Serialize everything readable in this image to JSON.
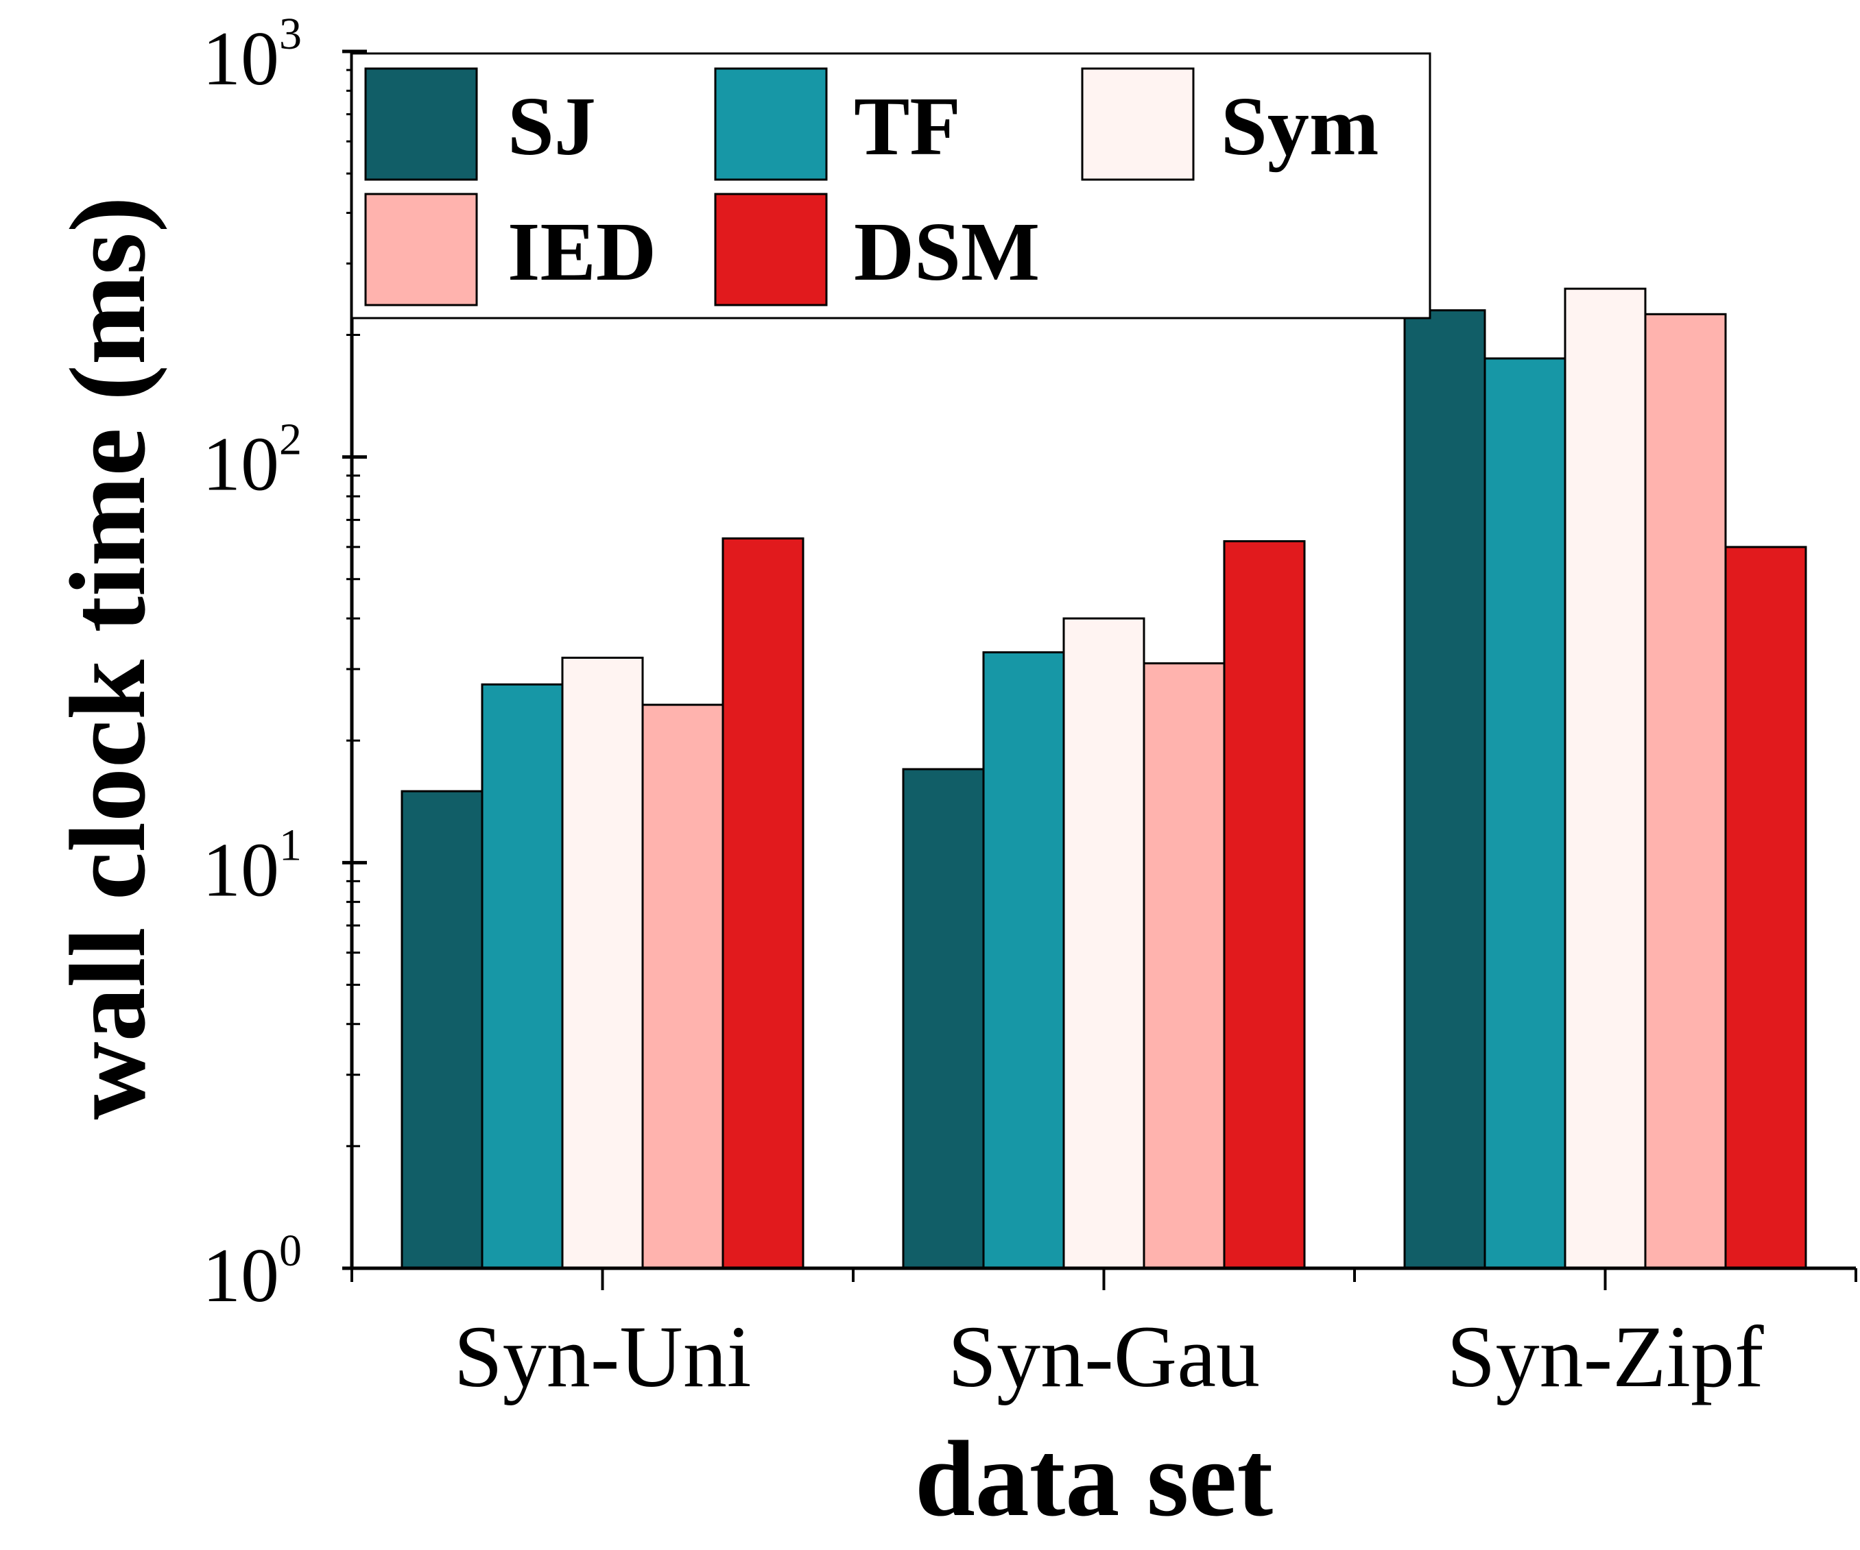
{
  "chart_data": {
    "type": "bar",
    "title": "",
    "xlabel": "data set",
    "ylabel": "wall clock time (ms)",
    "yscale": "log",
    "ylim": [
      1,
      1000
    ],
    "y_ticks": [
      {
        "base": "10",
        "exp": "0"
      },
      {
        "base": "10",
        "exp": "1"
      },
      {
        "base": "10",
        "exp": "2"
      },
      {
        "base": "10",
        "exp": "3"
      }
    ],
    "categories": [
      "Syn-Uni",
      "Syn-Gau",
      "Syn-Zipf"
    ],
    "series": [
      {
        "name": "SJ",
        "color": "#115e67",
        "values": [
          15,
          17,
          230
        ]
      },
      {
        "name": "TF",
        "color": "#1797a6",
        "values": [
          27.5,
          33,
          175
        ]
      },
      {
        "name": "Sym",
        "color": "#fff4f2",
        "values": [
          32,
          40,
          260
        ]
      },
      {
        "name": "IED",
        "color": "#ffb3ae",
        "values": [
          24.5,
          31,
          225
        ]
      },
      {
        "name": "DSM",
        "color": "#e11a1d",
        "values": [
          63,
          62,
          60
        ]
      }
    ],
    "legend_position": "top-left",
    "grid": false
  }
}
